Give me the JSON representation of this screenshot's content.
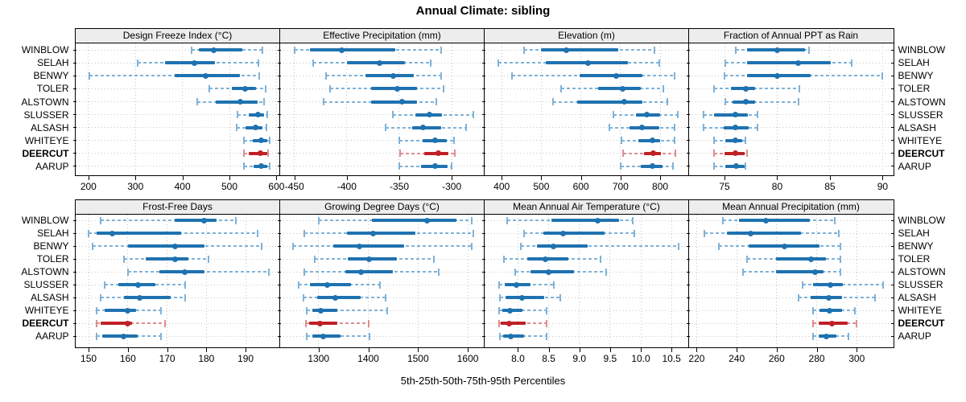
{
  "title": "Annual Climate: sibling",
  "caption": "5th-25th-50th-75th-95th Percentiles",
  "highlight_station": "DEERCUT",
  "stations": [
    "WINBLOW",
    "SELAH",
    "BENWY",
    "TOLER",
    "ALSTOWN",
    "SLUSSER",
    "ALSASH",
    "WHITEYE",
    "DEERCUT",
    "AARUP"
  ],
  "percentile_labels": [
    "5th",
    "25th",
    "50th",
    "75th",
    "95th"
  ],
  "colors": {
    "series": "#1f72b0",
    "series_light": "#7fb2d8",
    "highlight": "#bf2026",
    "highlight_light": "#dc8e92",
    "grid": "#c6c6c6",
    "strip_bg": "#ededed",
    "border": "#000000"
  },
  "chart_data": {
    "type": "trellis-dotplot-percentiles",
    "layout": {
      "rows": 2,
      "cols": 4
    },
    "note": "Each row: 5th-25th-50th-75th-95th percentile whisker, thick bar = 25th-75th, dot = median. Values per station in order WINBLOW,SELAH,BENWY,TOLER,ALSTOWN,SLUSSER,ALSASH,WHITEYE,DEERCUT,AARUP.",
    "panels": [
      {
        "title": "Design Freeze Index (°C)",
        "tick_values": [
          200,
          300,
          400,
          500,
          600
        ],
        "tick_labels": [
          "200",
          "300",
          "400",
          "500",
          "600"
        ],
        "xlim": [
          172,
          607
        ],
        "values": [
          [
            419,
            435,
            466,
            527,
            570
          ],
          [
            305,
            363,
            426,
            469,
            561
          ],
          [
            202,
            383,
            450,
            523,
            563
          ],
          [
            458,
            505,
            533,
            557,
            577
          ],
          [
            431,
            471,
            523,
            560,
            573
          ],
          [
            517,
            541,
            560,
            574,
            580
          ],
          [
            516,
            534,
            555,
            571,
            579
          ],
          [
            531,
            549,
            567,
            580,
            585
          ],
          [
            531,
            541,
            566,
            580,
            583
          ],
          [
            531,
            551,
            567,
            581,
            585
          ]
        ]
      },
      {
        "title": "Effective Precipitation (mm)",
        "tick_values": [
          -450,
          -400,
          -350,
          -300
        ],
        "tick_labels": [
          "-450",
          "-400",
          "-350",
          "-300"
        ],
        "xlim": [
          -464,
          -269
        ],
        "values": [
          [
            -450,
            -435,
            -405,
            -354,
            -310
          ],
          [
            -432,
            -400,
            -369,
            -345,
            -320
          ],
          [
            -420,
            -382,
            -356,
            -336,
            -310
          ],
          [
            -416,
            -377,
            -352,
            -333,
            -308
          ],
          [
            -422,
            -377,
            -347,
            -333,
            -315
          ],
          [
            -356,
            -335,
            -321,
            -309,
            -279
          ],
          [
            -363,
            -338,
            -327,
            -310,
            -286
          ],
          [
            -350,
            -328,
            -316,
            -305,
            -298
          ],
          [
            -349,
            -326,
            -313,
            -303,
            -297
          ],
          [
            -350,
            -329,
            -316,
            -304,
            -300
          ]
        ]
      },
      {
        "title": "Elevation (m)",
        "tick_values": [
          400,
          500,
          600,
          700,
          800
        ],
        "tick_labels": [
          "400",
          "500",
          "600",
          "700",
          "800"
        ],
        "xlim": [
          356,
          872
        ],
        "values": [
          [
            456,
            500,
            563,
            695,
            786
          ],
          [
            391,
            512,
            618,
            719,
            797
          ],
          [
            426,
            597,
            690,
            756,
            836
          ],
          [
            550,
            644,
            705,
            752,
            809
          ],
          [
            530,
            590,
            710,
            756,
            819
          ],
          [
            683,
            739,
            766,
            799,
            845
          ],
          [
            671,
            722,
            754,
            798,
            837
          ],
          [
            703,
            746,
            781,
            800,
            836
          ],
          [
            707,
            759,
            783,
            802,
            839
          ],
          [
            700,
            752,
            780,
            805,
            832
          ]
        ]
      },
      {
        "title": "Fraction of Annual PPT as Rain",
        "tick_values": [
          75,
          80,
          85,
          90
        ],
        "tick_labels": [
          "75",
          "80",
          "85",
          "90"
        ],
        "xlim": [
          71.6,
          91
        ],
        "values": [
          [
            76.1,
            77.1,
            80.0,
            82.6,
            83.0
          ],
          [
            75.1,
            77.1,
            82.0,
            85.1,
            87.1
          ],
          [
            75.0,
            77.1,
            80.0,
            83.2,
            90.0
          ],
          [
            74.0,
            75.6,
            77.0,
            77.9,
            82.1
          ],
          [
            75.1,
            75.8,
            77.0,
            77.9,
            82.0
          ],
          [
            73.0,
            74.0,
            76.0,
            77.2,
            78.1
          ],
          [
            73.0,
            74.9,
            76.0,
            77.3,
            78.1
          ],
          [
            74.0,
            75.1,
            76.0,
            76.7,
            77.0
          ],
          [
            74.0,
            75.0,
            76.0,
            76.9,
            77.1
          ],
          [
            74.0,
            75.1,
            76.1,
            76.9,
            77.0
          ]
        ]
      },
      {
        "title": "Frost-Free Days",
        "tick_values": [
          150,
          160,
          170,
          180,
          190
        ],
        "tick_labels": [
          "150",
          "160",
          "170",
          "180",
          "190"
        ],
        "xlim": [
          146.6,
          198.7
        ],
        "values": [
          [
            153,
            172,
            179.5,
            182.5,
            187.5
          ],
          [
            150,
            152,
            156,
            173.5,
            193
          ],
          [
            151,
            160,
            172,
            179.5,
            194
          ],
          [
            159,
            164.5,
            172,
            175.5,
            180.5
          ],
          [
            160,
            168,
            174.5,
            179.5,
            196
          ],
          [
            154,
            157.5,
            162.5,
            167,
            174.5
          ],
          [
            153,
            159,
            163,
            171,
            174.5
          ],
          [
            152,
            154,
            160,
            162,
            168.5
          ],
          [
            152,
            153,
            160,
            161,
            169.5
          ],
          [
            152,
            153.5,
            159,
            162.5,
            168.5
          ]
        ]
      },
      {
        "title": "Growing Degree Days (°C)",
        "tick_values": [
          1300,
          1400,
          1500,
          1600
        ],
        "tick_labels": [
          "1300",
          "1400",
          "1500",
          "1600"
        ],
        "xlim": [
          1222,
          1633
        ],
        "values": [
          [
            1300,
            1407,
            1518,
            1577,
            1608
          ],
          [
            1272,
            1357,
            1410,
            1494,
            1611
          ],
          [
            1249,
            1329,
            1382,
            1472,
            1608
          ],
          [
            1292,
            1358,
            1401,
            1457,
            1532
          ],
          [
            1271,
            1354,
            1385,
            1450,
            1542
          ],
          [
            1260,
            1283,
            1318,
            1365,
            1423
          ],
          [
            1269,
            1298,
            1333,
            1385,
            1434
          ],
          [
            1276,
            1288,
            1304,
            1338,
            1438
          ],
          [
            1274,
            1281,
            1303,
            1338,
            1400
          ],
          [
            1276,
            1288,
            1310,
            1344,
            1403
          ]
        ]
      },
      {
        "title": "Mean Annual Air Temperature (°C)",
        "tick_values": [
          8.0,
          8.5,
          9.0,
          9.5,
          10.0,
          10.5
        ],
        "tick_labels": [
          "8.0",
          "8.5",
          "9.0",
          "9.5",
          "10.0",
          "10.5"
        ],
        "xlim": [
          7.45,
          10.78
        ],
        "values": [
          [
            7.82,
            8.55,
            9.3,
            9.64,
            9.87
          ],
          [
            8.1,
            8.41,
            8.73,
            9.41,
            9.9
          ],
          [
            8.04,
            8.31,
            8.58,
            9.13,
            10.61
          ],
          [
            7.77,
            8.15,
            8.45,
            8.82,
            9.35
          ],
          [
            7.95,
            8.21,
            8.5,
            8.91,
            9.43
          ],
          [
            7.69,
            7.78,
            7.97,
            8.2,
            8.59
          ],
          [
            7.71,
            7.8,
            8.06,
            8.43,
            8.69
          ],
          [
            7.69,
            7.75,
            7.87,
            8.07,
            8.47
          ],
          [
            7.69,
            7.72,
            7.85,
            8.12,
            8.46
          ],
          [
            7.71,
            7.76,
            7.88,
            8.1,
            8.46
          ]
        ]
      },
      {
        "title": "Mean Annual Precipitation (mm)",
        "tick_values": [
          220,
          240,
          260,
          280,
          300
        ],
        "tick_labels": [
          "220",
          "240",
          "260",
          "280",
          "300"
        ],
        "xlim": [
          216,
          318.2
        ],
        "values": [
          [
            233,
            241,
            254.5,
            276.5,
            289
          ],
          [
            224,
            235,
            247,
            272,
            291
          ],
          [
            231,
            246,
            264,
            281.5,
            292
          ],
          [
            245,
            259.5,
            277,
            284.5,
            292
          ],
          [
            243,
            259.5,
            279,
            283.5,
            292
          ],
          [
            273,
            278,
            287,
            293,
            313
          ],
          [
            271,
            277,
            286,
            292.5,
            309
          ],
          [
            278,
            281.5,
            286.5,
            292.5,
            299
          ],
          [
            278,
            281,
            287.5,
            295.5,
            300
          ],
          [
            278,
            281,
            285,
            290,
            296
          ]
        ]
      }
    ]
  }
}
